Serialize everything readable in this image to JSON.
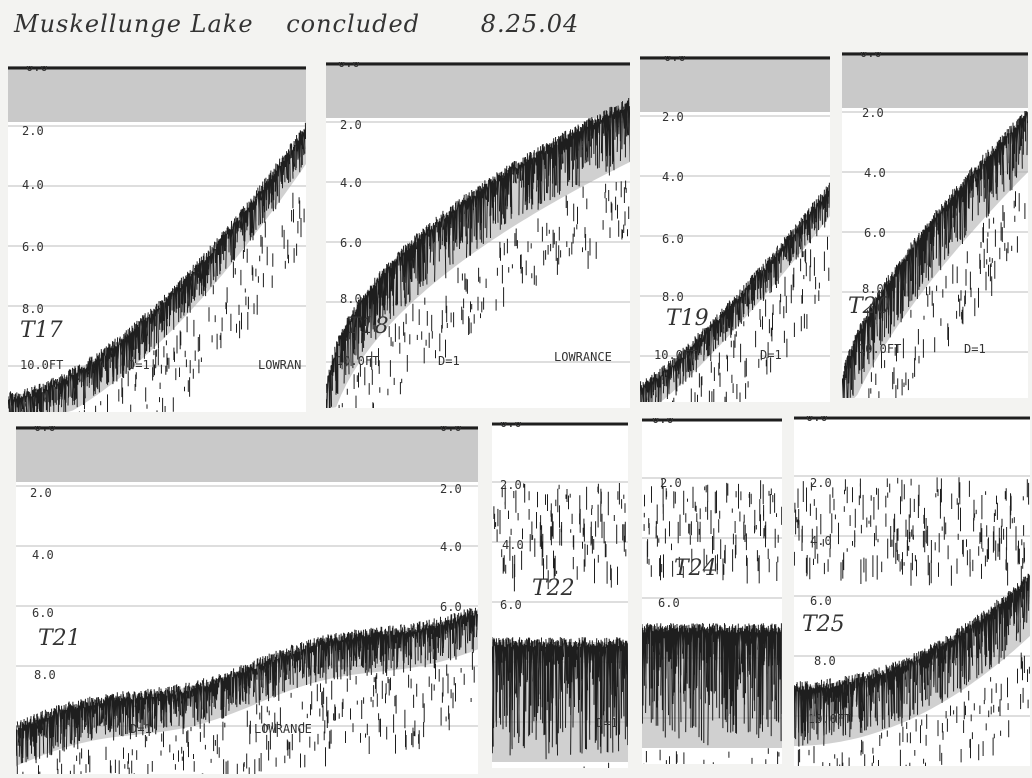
{
  "header": {
    "location": "Muskellunge Lake",
    "status": "concluded",
    "date": "8.25.04"
  },
  "depth_labels": {
    "d0": "0.0",
    "d2": "2.0",
    "d4": "4.0",
    "d6": "6.0",
    "d8": "8.0",
    "d10": "10.0FT"
  },
  "panel_text": {
    "gain": "D=1",
    "brand": "LOWRANCE",
    "brand_cut": "LOWRAN"
  },
  "transects": [
    {
      "id": "T17"
    },
    {
      "id": "T18"
    },
    {
      "id": "T19"
    },
    {
      "id": "T20"
    },
    {
      "id": "T21"
    },
    {
      "id": "T22"
    },
    {
      "id": "T24"
    },
    {
      "id": "T25"
    }
  ],
  "colors": {
    "paper": "#f3f3f1",
    "surface_band": "#c9c9c9",
    "signal": "#1e1e1e",
    "gray_zone": "#a9a9a9",
    "gridline": "#bdbdbd"
  }
}
